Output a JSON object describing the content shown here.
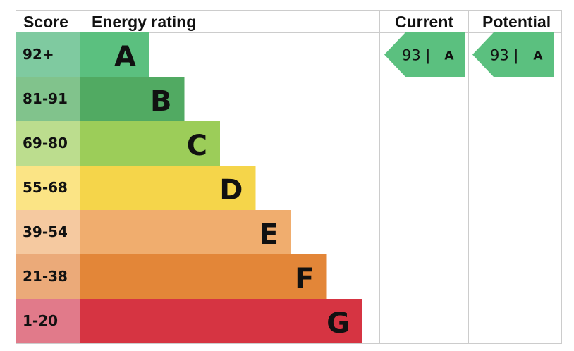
{
  "headers": {
    "score": "Score",
    "energy_rating": "Energy rating",
    "current": "Current",
    "potential": "Potential"
  },
  "chart_data": {
    "type": "bar",
    "categories": [
      "92+",
      "81-91",
      "69-80",
      "55-68",
      "39-54",
      "21-38",
      "1-20"
    ],
    "bands": [
      {
        "score": "92+",
        "letter": "A",
        "band_color": "#5bc07f",
        "score_color": "#7fcaa0"
      },
      {
        "score": "81-91",
        "letter": "B",
        "band_color": "#51aa62",
        "score_color": "#81c38c"
      },
      {
        "score": "69-80",
        "letter": "C",
        "band_color": "#9ccd59",
        "score_color": "#bcdd8e"
      },
      {
        "score": "55-68",
        "letter": "D",
        "band_color": "#f5d54a",
        "score_color": "#fbe485"
      },
      {
        "score": "39-54",
        "letter": "E",
        "band_color": "#f0ad6e",
        "score_color": "#f5c9a0"
      },
      {
        "score": "21-38",
        "letter": "F",
        "band_color": "#e38638",
        "score_color": "#ebaa79"
      },
      {
        "score": "1-20",
        "letter": "G",
        "band_color": "#d63442",
        "score_color": "#e17a8a"
      }
    ],
    "current": {
      "value": "93",
      "letter": "A",
      "color": "#5bc07f"
    },
    "potential": {
      "value": "93",
      "letter": "A",
      "color": "#5bc07f"
    }
  }
}
